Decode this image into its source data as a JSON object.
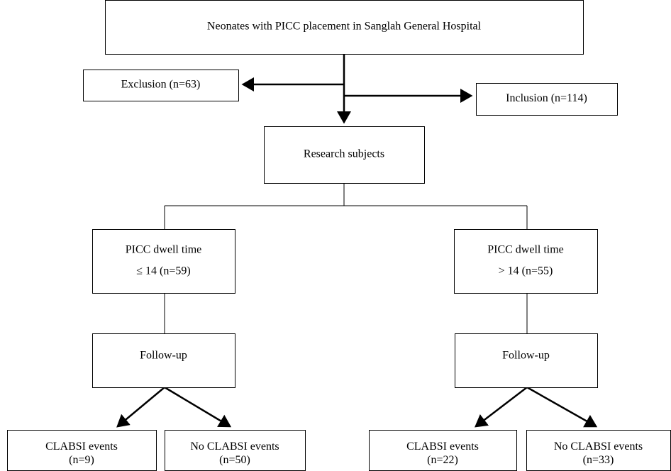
{
  "nodes": [
    {
      "lines": [
        "Neonates with PICC placement in Sanglah General Hospital"
      ]
    },
    {
      "lines": [
        "Exclusion (n=63)"
      ]
    },
    {
      "lines": [
        "Inclusion (n=114)"
      ]
    },
    {
      "lines": [
        "Research subjects"
      ]
    },
    {
      "lines": [
        "PICC dwell time",
        "≤ 14 (n=59)"
      ]
    },
    {
      "lines": [
        "PICC dwell time",
        "> 14 (n=55)"
      ]
    },
    {
      "lines": [
        "Follow-up"
      ]
    },
    {
      "lines": [
        "Follow-up"
      ]
    },
    {
      "lines": [
        "CLABSI events",
        "(n=9)"
      ]
    },
    {
      "lines": [
        "No CLABSI events",
        "(n=50)"
      ]
    },
    {
      "lines": [
        "CLABSI events",
        "(n=22)"
      ]
    },
    {
      "lines": [
        "No CLABSI events",
        "(n=33)"
      ]
    }
  ]
}
